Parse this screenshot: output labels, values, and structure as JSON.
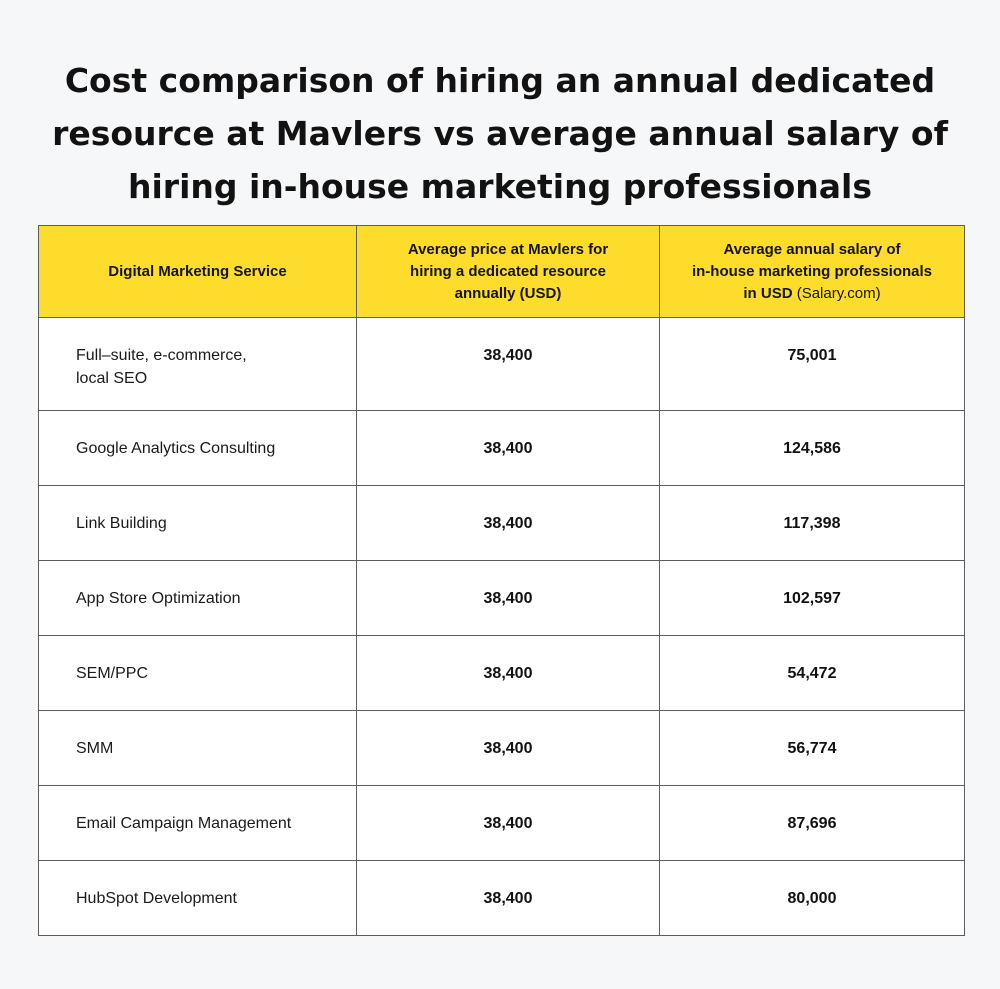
{
  "title": {
    "line1": "Cost comparison of hiring an annual dedicated",
    "line2": "resource at Mavlers vs average annual salary of",
    "line3": "hiring in-house marketing professionals"
  },
  "table": {
    "headers": {
      "service": "Digital Marketing Service",
      "mavlers": {
        "line1": "Average price at Mavlers for",
        "line2": "hiring a dedicated resource",
        "line3": "annually (USD)"
      },
      "inhouse": {
        "line1": "Average annual salary of",
        "line2": "in-house marketing professionals",
        "line3_bold": "in USD",
        "line3_source": "(Salary.com)"
      }
    },
    "rows": [
      {
        "service_line1": "Full–suite, e-commerce,",
        "service_line2": "local SEO",
        "mavlers": "38,400",
        "inhouse": "75,001"
      },
      {
        "service": "Google Analytics Consulting",
        "mavlers": "38,400",
        "inhouse": "124,586"
      },
      {
        "service": "Link Building",
        "mavlers": "38,400",
        "inhouse": "117,398"
      },
      {
        "service": "App Store Optimization",
        "mavlers": "38,400",
        "inhouse": "102,597"
      },
      {
        "service": "SEM/PPC",
        "mavlers": "38,400",
        "inhouse": "54,472"
      },
      {
        "service": "SMM",
        "mavlers": "38,400",
        "inhouse": "56,774"
      },
      {
        "service": "Email Campaign Management",
        "mavlers": "38,400",
        "inhouse": "87,696"
      },
      {
        "service": "HubSpot Development",
        "mavlers": "38,400",
        "inhouse": "80,000"
      }
    ]
  },
  "colors": {
    "header_background": "#fddc2c",
    "page_background": "#f6f7f9",
    "border": "#5d5d5d"
  }
}
